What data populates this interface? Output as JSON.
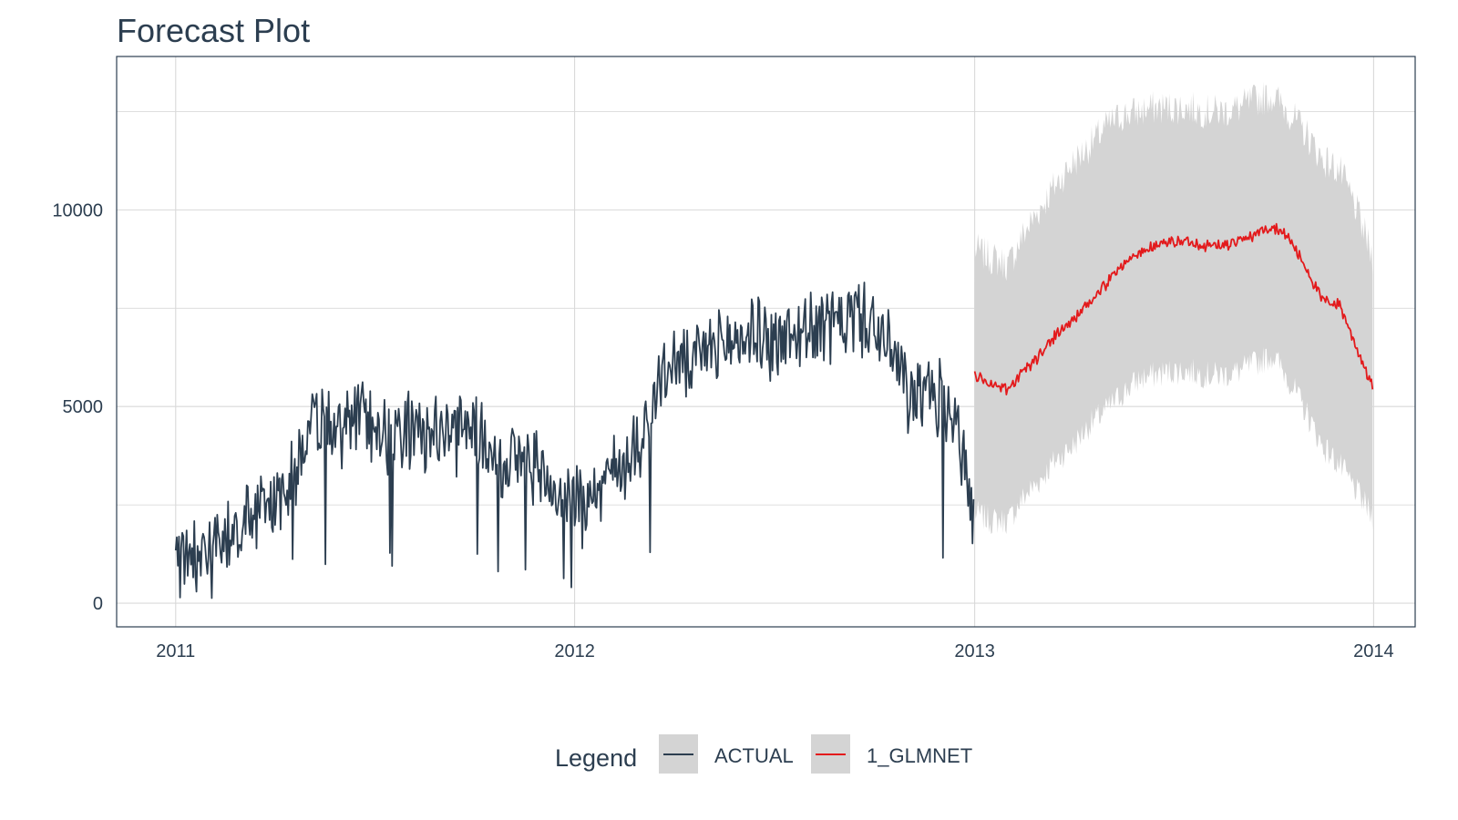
{
  "chart_data": {
    "type": "line",
    "title": "Forecast Plot",
    "xlabel": "",
    "ylabel": "",
    "xlim": [
      "2010-11-08",
      "2014-02-08"
    ],
    "ylim": [
      -600,
      13900
    ],
    "x_ticks": [
      "2011",
      "2012",
      "2013",
      "2014"
    ],
    "y_ticks": [
      0,
      5000,
      10000
    ],
    "grid": true,
    "legend": {
      "title": "Legend",
      "position": "bottom",
      "entries": [
        "ACTUAL",
        "1_GLMNET"
      ]
    },
    "colors": {
      "actual": "#2c3e50",
      "forecast": "#e31a1c",
      "interval": "#d4d4d4",
      "grid": "#d9d9d9",
      "frame": "#2c3e50"
    },
    "series": [
      {
        "name": "ACTUAL",
        "x": [
          "2011-01-01",
          "2011-01-15",
          "2011-02-01",
          "2011-02-15",
          "2011-03-01",
          "2011-03-15",
          "2011-04-01",
          "2011-04-15",
          "2011-05-01",
          "2011-05-15",
          "2011-06-01",
          "2011-06-15",
          "2011-07-01",
          "2011-07-15",
          "2011-08-01",
          "2011-08-15",
          "2011-09-01",
          "2011-09-15",
          "2011-10-01",
          "2011-10-15",
          "2011-11-01",
          "2011-11-15",
          "2011-12-01",
          "2011-12-15",
          "2012-01-01",
          "2012-01-15",
          "2012-02-01",
          "2012-02-15",
          "2012-03-01",
          "2012-03-15",
          "2012-04-01",
          "2012-04-15",
          "2012-05-01",
          "2012-05-15",
          "2012-06-01",
          "2012-06-15",
          "2012-07-01",
          "2012-07-15",
          "2012-08-01",
          "2012-08-15",
          "2012-09-01",
          "2012-09-15",
          "2012-10-01",
          "2012-10-15",
          "2012-11-01",
          "2012-11-15",
          "2012-12-01",
          "2012-12-15",
          "2012-12-31"
        ],
        "values": [
          1000,
          1400,
          1300,
          1600,
          2000,
          2400,
          2600,
          3100,
          4300,
          4600,
          4400,
          4800,
          4600,
          4300,
          4500,
          4200,
          4400,
          4300,
          4500,
          3900,
          3600,
          3700,
          3400,
          3000,
          2600,
          2900,
          3300,
          3600,
          4200,
          5400,
          6200,
          6000,
          6400,
          6600,
          6700,
          6900,
          6600,
          6800,
          7000,
          7000,
          7200,
          7400,
          7000,
          6500,
          5300,
          5200,
          5300,
          4900,
          2000
        ]
      },
      {
        "name": "1_GLMNET",
        "x": [
          "2013-01-01",
          "2013-01-15",
          "2013-02-01",
          "2013-02-15",
          "2013-03-01",
          "2013-03-15",
          "2013-04-01",
          "2013-04-15",
          "2013-05-01",
          "2013-05-15",
          "2013-06-01",
          "2013-06-15",
          "2013-07-01",
          "2013-07-15",
          "2013-08-01",
          "2013-08-15",
          "2013-09-01",
          "2013-09-15",
          "2013-10-01",
          "2013-10-15",
          "2013-11-01",
          "2013-11-15",
          "2013-12-01",
          "2013-12-15",
          "2013-12-31"
        ],
        "values": [
          5800,
          5600,
          5400,
          5900,
          6300,
          6800,
          7200,
          7600,
          8100,
          8600,
          8900,
          9100,
          9200,
          9200,
          9100,
          9100,
          9200,
          9400,
          9600,
          9300,
          8500,
          7700,
          7600,
          6600,
          5500
        ]
      }
    ],
    "interval": {
      "name": "1_GLMNET",
      "x": [
        "2013-01-01",
        "2013-01-15",
        "2013-02-01",
        "2013-02-15",
        "2013-03-01",
        "2013-03-15",
        "2013-04-01",
        "2013-04-15",
        "2013-05-01",
        "2013-05-15",
        "2013-06-01",
        "2013-06-15",
        "2013-07-01",
        "2013-07-15",
        "2013-08-01",
        "2013-08-15",
        "2013-09-01",
        "2013-09-15",
        "2013-10-01",
        "2013-10-15",
        "2013-11-01",
        "2013-11-15",
        "2013-12-01",
        "2013-12-15",
        "2013-12-31"
      ],
      "lower": [
        2300,
        2100,
        2100,
        2700,
        3100,
        3600,
        4000,
        4500,
        4900,
        5300,
        5700,
        5800,
        5900,
        5900,
        5800,
        5800,
        5900,
        6100,
        6300,
        5700,
        4800,
        4000,
        3500,
        2900,
        2200
      ],
      "upper": [
        9000,
        8800,
        8600,
        9400,
        10000,
        10600,
        11200,
        11600,
        12100,
        12400,
        12500,
        12600,
        12600,
        12600,
        12500,
        12500,
        12600,
        12800,
        12900,
        12500,
        11900,
        11300,
        11000,
        10100,
        8800
      ]
    }
  }
}
